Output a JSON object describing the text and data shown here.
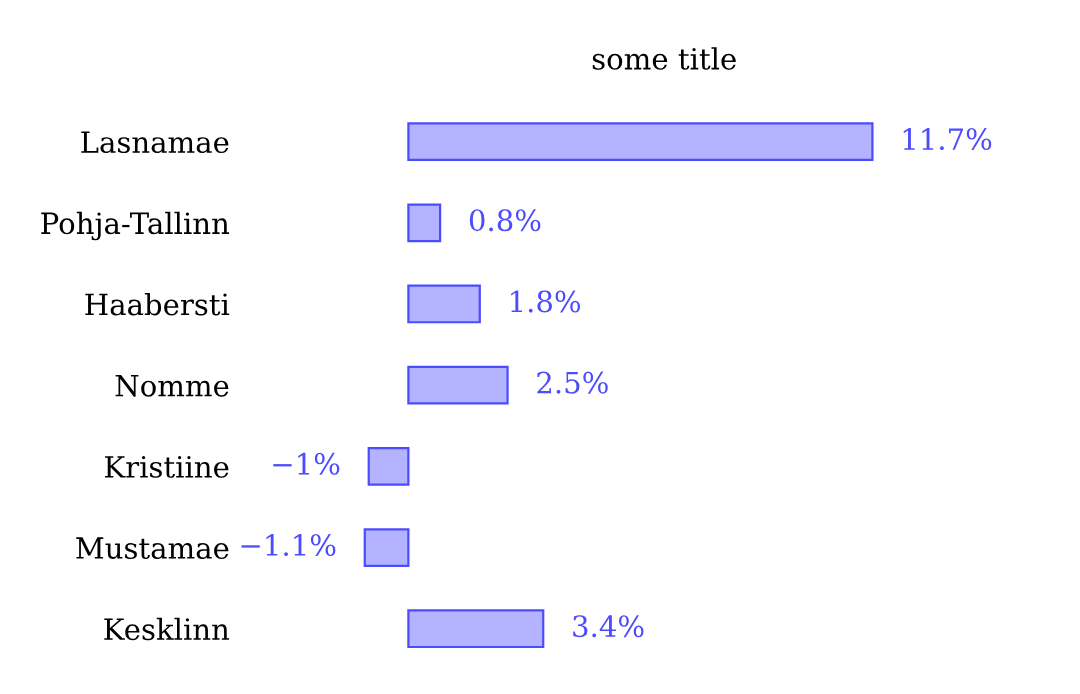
{
  "chart_data": {
    "type": "bar",
    "orientation": "horizontal",
    "title": "some title",
    "categories": [
      "Lasnamae",
      "Pohja-Tallinn",
      "Haabersti",
      "Nomme",
      "Kristiine",
      "Mustamae",
      "Kesklinn"
    ],
    "series": [
      {
        "color": "#b3b3ff",
        "values": [
          11.7,
          0.8,
          1.8,
          2.5,
          -1,
          -1.1,
          3.4
        ],
        "value_labels": [
          "11.7%",
          "0.8%",
          "1.8%",
          "2.5%",
          "−1%",
          "−1.1%",
          "3.4%"
        ]
      }
    ],
    "grid": false,
    "legend": false
  }
}
